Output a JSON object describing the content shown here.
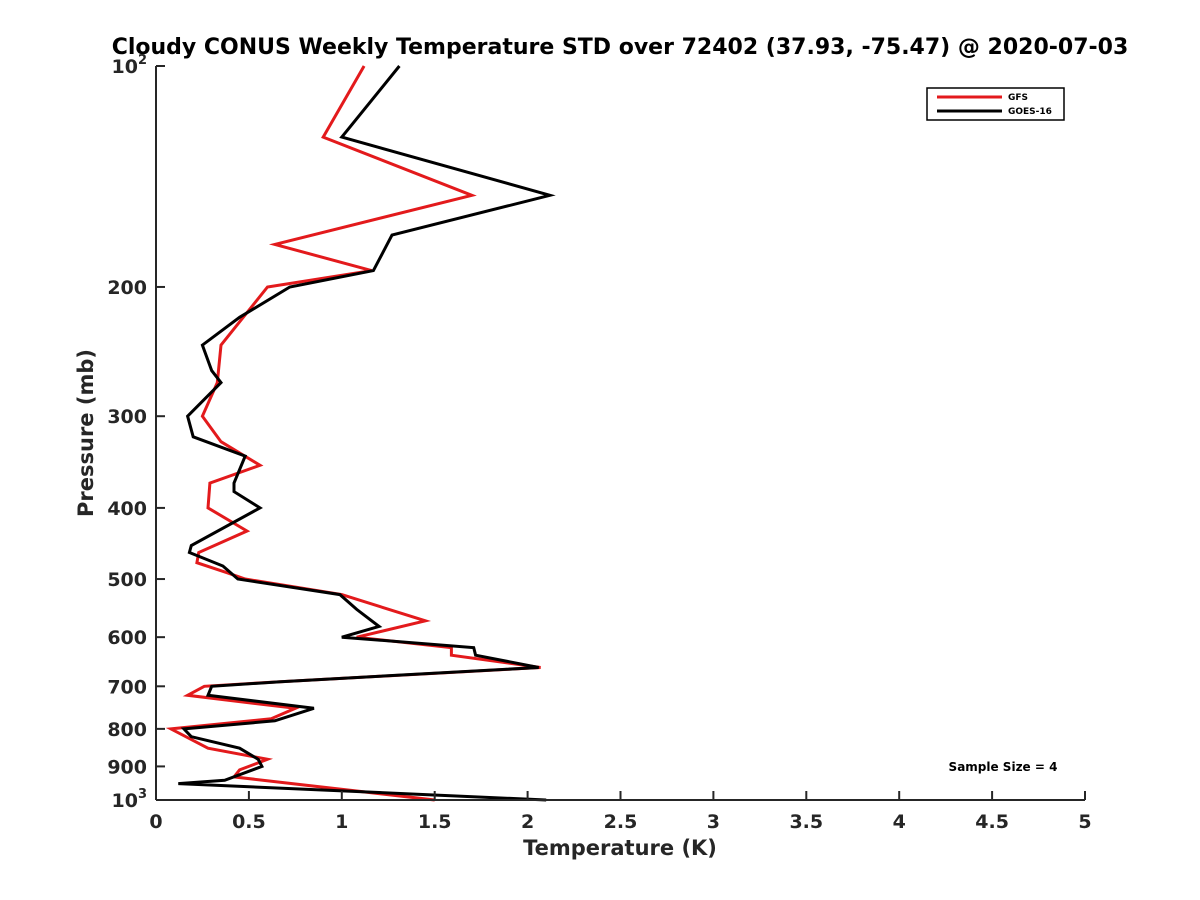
{
  "chart_data": {
    "type": "line",
    "title": "Cloudy CONUS Weekly Temperature STD over 72402 (37.93, -75.47) @ 2020-07-03",
    "xlabel": "Temperature (K)",
    "ylabel": "Pressure (mb)",
    "xlim": [
      0,
      5
    ],
    "ylim": [
      100,
      1000
    ],
    "y_scale": "log",
    "y_reversed": true,
    "grid": false,
    "legend_position": "top-right",
    "x_ticks": [
      {
        "value": 0,
        "label": "0"
      },
      {
        "value": 0.5,
        "label": "0.5"
      },
      {
        "value": 1,
        "label": "1"
      },
      {
        "value": 1.5,
        "label": "1.5"
      },
      {
        "value": 2,
        "label": "2"
      },
      {
        "value": 2.5,
        "label": "2.5"
      },
      {
        "value": 3,
        "label": "3"
      },
      {
        "value": 3.5,
        "label": "3.5"
      },
      {
        "value": 4,
        "label": "4"
      },
      {
        "value": 4.5,
        "label": "4.5"
      },
      {
        "value": 5,
        "label": "5"
      }
    ],
    "y_ticks": [
      {
        "value": 100,
        "base": "10",
        "exp": "2"
      },
      {
        "value": 200,
        "label": "200"
      },
      {
        "value": 300,
        "label": "300"
      },
      {
        "value": 400,
        "label": "400"
      },
      {
        "value": 500,
        "label": "500"
      },
      {
        "value": 600,
        "label": "600"
      },
      {
        "value": 700,
        "label": "700"
      },
      {
        "value": 800,
        "label": "800"
      },
      {
        "value": 900,
        "label": "900"
      },
      {
        "value": 1000,
        "base": "10",
        "exp": "3"
      }
    ],
    "series": [
      {
        "name": "GFS",
        "color": "#e31a1c",
        "points": [
          [
            1.12,
            100
          ],
          [
            0.9,
            125
          ],
          [
            1.7,
            150
          ],
          [
            0.64,
            175
          ],
          [
            1.16,
            190
          ],
          [
            0.6,
            200
          ],
          [
            0.35,
            240
          ],
          [
            0.33,
            270
          ],
          [
            0.25,
            300
          ],
          [
            0.35,
            325
          ],
          [
            0.56,
            350
          ],
          [
            0.29,
            370
          ],
          [
            0.28,
            400
          ],
          [
            0.49,
            430
          ],
          [
            0.23,
            460
          ],
          [
            0.22,
            475
          ],
          [
            0.38,
            490
          ],
          [
            0.48,
            500
          ],
          [
            1.0,
            525
          ],
          [
            1.45,
            570
          ],
          [
            1.08,
            600
          ],
          [
            1.59,
            620
          ],
          [
            1.59,
            635
          ],
          [
            2.07,
            660
          ],
          [
            0.67,
            690
          ],
          [
            0.26,
            700
          ],
          [
            0.17,
            720
          ],
          [
            0.75,
            750
          ],
          [
            0.62,
            775
          ],
          [
            0.08,
            800
          ],
          [
            0.28,
            850
          ],
          [
            0.6,
            880
          ],
          [
            0.45,
            910
          ],
          [
            0.42,
            930
          ],
          [
            1.5,
            1000
          ]
        ]
      },
      {
        "name": "GOES-16",
        "color": "#000000",
        "points": [
          [
            1.31,
            100
          ],
          [
            1.0,
            125
          ],
          [
            2.12,
            150
          ],
          [
            1.27,
            170
          ],
          [
            1.17,
            190
          ],
          [
            0.72,
            200
          ],
          [
            0.45,
            220
          ],
          [
            0.25,
            240
          ],
          [
            0.3,
            260
          ],
          [
            0.35,
            270
          ],
          [
            0.17,
            300
          ],
          [
            0.2,
            320
          ],
          [
            0.48,
            340
          ],
          [
            0.42,
            370
          ],
          [
            0.42,
            380
          ],
          [
            0.56,
            400
          ],
          [
            0.19,
            450
          ],
          [
            0.18,
            460
          ],
          [
            0.36,
            480
          ],
          [
            0.44,
            500
          ],
          [
            0.99,
            525
          ],
          [
            1.08,
            550
          ],
          [
            1.2,
            580
          ],
          [
            1.0,
            600
          ],
          [
            1.71,
            620
          ],
          [
            1.72,
            635
          ],
          [
            2.06,
            660
          ],
          [
            0.67,
            690
          ],
          [
            0.3,
            700
          ],
          [
            0.28,
            720
          ],
          [
            0.85,
            750
          ],
          [
            0.64,
            780
          ],
          [
            0.15,
            800
          ],
          [
            0.19,
            820
          ],
          [
            0.45,
            850
          ],
          [
            0.55,
            880
          ],
          [
            0.57,
            900
          ],
          [
            0.37,
            940
          ],
          [
            0.12,
            950
          ],
          [
            2.1,
            1000
          ]
        ]
      }
    ],
    "annotation": "Sample Size = 4"
  }
}
